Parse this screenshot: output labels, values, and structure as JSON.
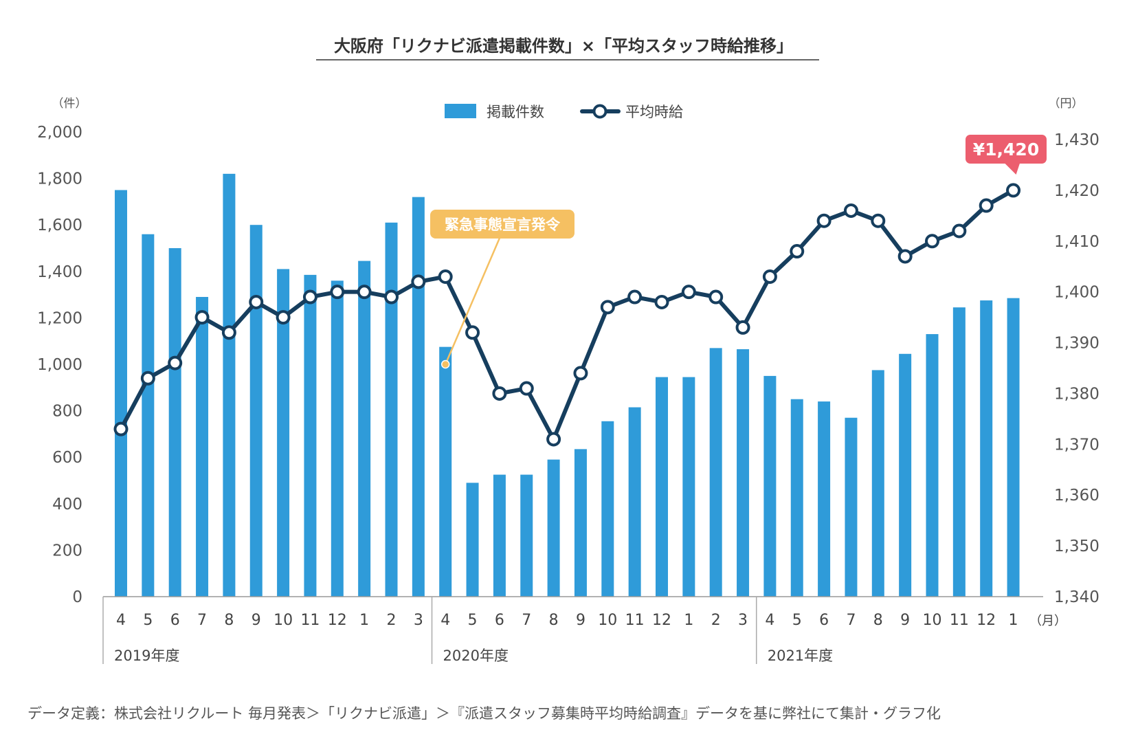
{
  "chart_data": {
    "type": "bar",
    "title": "大阪府「リクナビ派遣掲載件数」×「平均スタッフ時給推移」",
    "categories": [
      "4",
      "5",
      "6",
      "7",
      "8",
      "9",
      "10",
      "11",
      "12",
      "1",
      "2",
      "3",
      "4",
      "5",
      "6",
      "7",
      "8",
      "9",
      "10",
      "11",
      "12",
      "1",
      "2",
      "3",
      "4",
      "5",
      "6",
      "7",
      "8",
      "9",
      "10",
      "11",
      "12",
      "1"
    ],
    "series": [
      {
        "name": "掲載件数",
        "type": "bar",
        "axis": "left",
        "values": [
          1750,
          1560,
          1500,
          1290,
          1820,
          1600,
          1410,
          1385,
          1360,
          1445,
          1610,
          1720,
          1075,
          490,
          525,
          525,
          590,
          635,
          755,
          815,
          945,
          945,
          1070,
          1065,
          950,
          850,
          840,
          770,
          975,
          1045,
          1130,
          1245,
          1275,
          1285
        ]
      },
      {
        "name": "平均時給",
        "type": "line",
        "axis": "right",
        "values": [
          1373,
          1383,
          1386,
          1395,
          1392,
          1398,
          1395,
          1399,
          1400,
          1400,
          1399,
          1402,
          1403,
          1392,
          1380,
          1381,
          1371,
          1384,
          1397,
          1399,
          1398,
          1400,
          1399,
          1393,
          1403,
          1408,
          1414,
          1416,
          1414,
          1407,
          1410,
          1412,
          1417,
          1420
        ]
      }
    ],
    "y_left": {
      "unit_label": "（件）",
      "ylim": [
        0,
        2000
      ],
      "ticks": [
        "0",
        "200",
        "400",
        "600",
        "800",
        "1,000",
        "1,200",
        "1,400",
        "1,600",
        "1,800",
        "2,000"
      ]
    },
    "y_right": {
      "unit_label": "（円）",
      "ylim": [
        1340,
        1430
      ],
      "ticks": [
        "1,340",
        "1,350",
        "1,360",
        "1,370",
        "1,380",
        "1,390",
        "1,400",
        "1,410",
        "1,420",
        "1,430"
      ]
    },
    "x_unit_label": "（月）",
    "fiscal_years": [
      {
        "label": "2019年度",
        "start": 0,
        "end": 11
      },
      {
        "label": "2020年度",
        "start": 12,
        "end": 23
      },
      {
        "label": "2021年度",
        "start": 24,
        "end": 33
      }
    ],
    "annotations": [
      {
        "text": "緊急事態宣言発令",
        "index": 12,
        "value": 1000,
        "axis": "left",
        "color": "#f5c062"
      },
      {
        "text": "¥1,420",
        "index": 33,
        "value": 1420,
        "axis": "right",
        "color": "#ec5e6e"
      }
    ],
    "grid": false,
    "legend_position": "top-center",
    "colors": {
      "bar": "#2f9bd9",
      "line": "#163e5e",
      "marker_fill": "#ffffff"
    }
  },
  "footnote": "データ定義：株式会社リクルート 毎月発表＞「リクナビ派遣」＞『派遣スタッフ募集時平均時給調査』データを基に弊社にて集計・グラフ化"
}
